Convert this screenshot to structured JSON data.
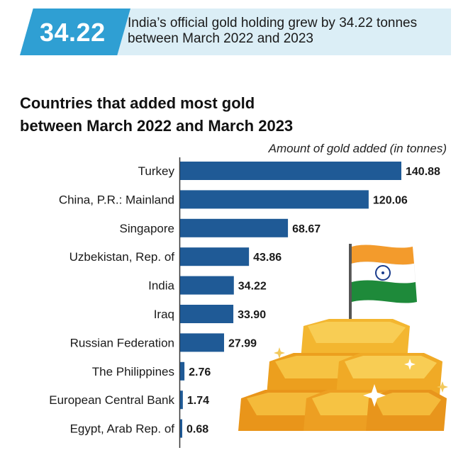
{
  "banner": {
    "number": "34.22",
    "text_line1": "India’s official gold holding grew by 34.22 tonnes",
    "text_line2": "between March 2022 and 2023"
  },
  "colors": {
    "bar": "#1f5a96",
    "banner_chip": "#2f9fd3",
    "banner_band": "#dbeef6"
  },
  "illustration": {
    "icons": [
      "gold-bars-icon",
      "india-flag-icon",
      "sparkle-icon"
    ]
  },
  "chart_data": {
    "type": "bar",
    "orientation": "horizontal",
    "title_line1": "Countries that added most gold",
    "title_line2": "between March 2022 and March 2023",
    "subtitle": "Amount of gold added (in tonnes)",
    "categories": [
      "Turkey",
      "China, P.R.: Mainland",
      "Singapore",
      "Uzbekistan, Rep. of",
      "India",
      "Iraq",
      "Russian Federation",
      "The Philippines",
      "European Central Bank",
      "Egypt, Arab Rep. of"
    ],
    "values": [
      140.88,
      120.06,
      68.67,
      43.86,
      34.22,
      33.9,
      27.99,
      2.76,
      1.74,
      0.68
    ],
    "value_labels": [
      "140.88",
      "120.06",
      "68.67",
      "43.86",
      "34.22",
      "33.90",
      "27.99",
      "2.76",
      "1.74",
      "0.68"
    ],
    "grid": false
  }
}
